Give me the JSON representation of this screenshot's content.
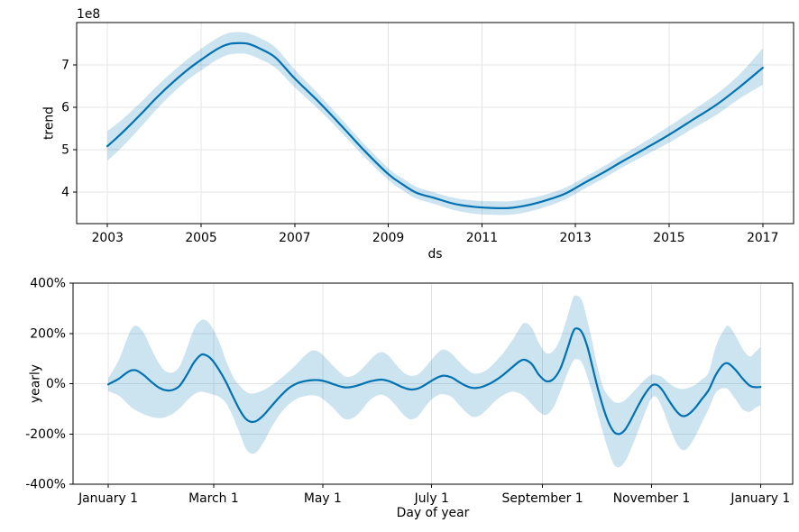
{
  "figure": {
    "background": "#ffffff",
    "line_color": "#0072B2",
    "band_color": "#0072B2",
    "band_opacity": 0.2,
    "grid_color": "#e5e5e5",
    "axis_color": "#000000",
    "text_color": "#000000"
  },
  "chart_data": [
    {
      "type": "line",
      "id": "trend",
      "xlabel": "ds",
      "ylabel": "trend",
      "offset_text": "1e8",
      "grid": true,
      "legend_position": "none",
      "xlim": [
        2002.34,
        2017.66
      ],
      "ylim": [
        3.25,
        8.0
      ],
      "x_ticks": [
        {
          "v": 2003,
          "label": "2003"
        },
        {
          "v": 2005,
          "label": "2005"
        },
        {
          "v": 2007,
          "label": "2007"
        },
        {
          "v": 2009,
          "label": "2009"
        },
        {
          "v": 2011,
          "label": "2011"
        },
        {
          "v": 2013,
          "label": "2013"
        },
        {
          "v": 2015,
          "label": "2015"
        },
        {
          "v": 2017,
          "label": "2017"
        }
      ],
      "y_ticks": [
        {
          "v": 4,
          "label": "4"
        },
        {
          "v": 5,
          "label": "5"
        },
        {
          "v": 6,
          "label": "6"
        },
        {
          "v": 7,
          "label": "7"
        }
      ],
      "x": [
        2003.0,
        2003.25,
        2003.5,
        2003.75,
        2004.0,
        2004.25,
        2004.5,
        2004.75,
        2005.0,
        2005.25,
        2005.5,
        2005.7,
        2006.0,
        2006.3,
        2006.6,
        2007.0,
        2007.5,
        2008.0,
        2008.5,
        2009.0,
        2009.3,
        2009.6,
        2010.0,
        2010.4,
        2010.8,
        2011.2,
        2011.6,
        2012.0,
        2012.4,
        2012.8,
        2013.2,
        2013.6,
        2014.0,
        2014.5,
        2015.0,
        2015.5,
        2016.0,
        2016.5,
        2017.0
      ],
      "y": [
        5.08,
        5.33,
        5.6,
        5.88,
        6.17,
        6.44,
        6.69,
        6.92,
        7.12,
        7.31,
        7.46,
        7.51,
        7.5,
        7.36,
        7.16,
        6.68,
        6.14,
        5.56,
        4.96,
        4.42,
        4.18,
        3.98,
        3.85,
        3.72,
        3.65,
        3.62,
        3.62,
        3.69,
        3.81,
        3.97,
        4.22,
        4.46,
        4.72,
        5.03,
        5.35,
        5.7,
        6.05,
        6.47,
        6.93
      ],
      "upper": [
        5.44,
        5.65,
        5.9,
        6.16,
        6.44,
        6.7,
        6.94,
        7.17,
        7.38,
        7.57,
        7.72,
        7.77,
        7.75,
        7.61,
        7.4,
        6.89,
        6.32,
        5.72,
        5.11,
        4.56,
        4.32,
        4.12,
        3.98,
        3.86,
        3.8,
        3.78,
        3.78,
        3.84,
        3.95,
        4.11,
        4.35,
        4.6,
        4.87,
        5.2,
        5.55,
        5.92,
        6.3,
        6.77,
        7.39
      ],
      "lower": [
        4.74,
        4.99,
        5.28,
        5.58,
        5.89,
        6.18,
        6.44,
        6.68,
        6.87,
        7.06,
        7.21,
        7.26,
        7.25,
        7.11,
        6.92,
        6.47,
        5.96,
        5.4,
        4.81,
        4.28,
        4.04,
        3.84,
        3.71,
        3.57,
        3.49,
        3.46,
        3.46,
        3.53,
        3.66,
        3.83,
        4.08,
        4.32,
        4.58,
        4.87,
        5.16,
        5.49,
        5.81,
        6.2,
        6.53
      ]
    },
    {
      "type": "line",
      "id": "yearly",
      "xlabel": "Day of year",
      "ylabel": "yearly",
      "offset_text": "",
      "grid": true,
      "legend_position": "none",
      "xlim": [
        -19.7,
        383.0
      ],
      "ylim": [
        -400,
        400
      ],
      "x_ticks": [
        {
          "v": 0,
          "label": "January 1"
        },
        {
          "v": 59,
          "label": "March 1"
        },
        {
          "v": 120,
          "label": "May 1"
        },
        {
          "v": 181,
          "label": "July 1"
        },
        {
          "v": 243,
          "label": "September 1"
        },
        {
          "v": 304,
          "label": "November 1"
        },
        {
          "v": 365,
          "label": "January 1"
        }
      ],
      "y_ticks": [
        {
          "v": -400,
          "label": "-400%"
        },
        {
          "v": -200,
          "label": "-200%"
        },
        {
          "v": 0,
          "label": "0%"
        },
        {
          "v": 200,
          "label": "200%"
        },
        {
          "v": 400,
          "label": "400%"
        }
      ],
      "x": [
        0,
        6,
        10,
        13,
        16,
        20,
        24,
        28,
        32,
        36,
        40,
        44,
        48,
        52,
        55,
        58,
        62,
        66,
        70,
        74,
        77,
        80,
        83,
        87,
        91,
        96,
        101,
        106,
        110,
        114,
        118,
        122,
        126,
        130,
        133,
        137,
        141,
        145,
        149,
        153,
        157,
        161,
        165,
        169,
        173,
        177,
        181,
        185,
        188,
        192,
        196,
        200,
        204,
        208,
        212,
        216,
        221,
        226,
        230,
        233,
        237,
        241,
        245,
        249,
        253,
        257,
        260,
        262,
        265,
        268,
        271,
        274,
        277,
        280,
        283,
        286,
        289,
        292,
        296,
        300,
        304,
        307,
        310,
        314,
        318,
        321,
        324,
        328,
        332,
        336,
        340,
        344,
        347,
        351,
        355,
        359,
        362,
        365
      ],
      "y": [
        -3,
        20,
        42,
        53,
        52,
        33,
        8,
        -14,
        -26,
        -25,
        -8,
        35,
        85,
        115,
        112,
        95,
        55,
        5,
        -55,
        -110,
        -140,
        -152,
        -148,
        -125,
        -92,
        -52,
        -18,
        2,
        10,
        14,
        14,
        8,
        -2,
        -11,
        -15,
        -12,
        -4,
        6,
        13,
        16,
        10,
        -2,
        -15,
        -23,
        -20,
        -6,
        12,
        27,
        32,
        25,
        8,
        -8,
        -17,
        -15,
        -5,
        10,
        35,
        65,
        88,
        95,
        78,
        35,
        10,
        18,
        60,
        140,
        205,
        220,
        205,
        150,
        65,
        -20,
        -95,
        -155,
        -192,
        -200,
        -185,
        -150,
        -95,
        -45,
        -8,
        -5,
        -25,
        -70,
        -110,
        -128,
        -125,
        -100,
        -63,
        -25,
        35,
        75,
        80,
        55,
        20,
        -8,
        -14,
        -13
      ],
      "upper": [
        22,
        95,
        170,
        218,
        230,
        200,
        140,
        85,
        50,
        45,
        70,
        140,
        218,
        253,
        250,
        225,
        168,
        90,
        25,
        -12,
        -32,
        -40,
        -36,
        -25,
        -8,
        18,
        48,
        82,
        112,
        132,
        126,
        100,
        70,
        42,
        28,
        32,
        52,
        82,
        112,
        126,
        110,
        76,
        46,
        32,
        36,
        62,
        96,
        126,
        136,
        120,
        90,
        62,
        42,
        42,
        56,
        82,
        122,
        172,
        218,
        242,
        222,
        162,
        122,
        130,
        180,
        268,
        340,
        350,
        332,
        255,
        160,
        60,
        -15,
        -50,
        -72,
        -76,
        -66,
        -46,
        -16,
        14,
        36,
        33,
        26,
        0,
        -16,
        -21,
        -18,
        -6,
        16,
        46,
        148,
        208,
        230,
        192,
        138,
        108,
        126,
        146
      ],
      "lower": [
        -30,
        -48,
        -75,
        -95,
        -108,
        -122,
        -132,
        -137,
        -133,
        -120,
        -98,
        -68,
        -42,
        -32,
        -36,
        -42,
        -52,
        -78,
        -135,
        -205,
        -258,
        -278,
        -272,
        -232,
        -178,
        -122,
        -82,
        -58,
        -50,
        -46,
        -52,
        -72,
        -98,
        -128,
        -142,
        -136,
        -112,
        -76,
        -52,
        -44,
        -58,
        -88,
        -122,
        -142,
        -132,
        -96,
        -62,
        -44,
        -42,
        -52,
        -82,
        -112,
        -132,
        -126,
        -102,
        -72,
        -46,
        -32,
        -38,
        -52,
        -82,
        -112,
        -124,
        -96,
        -30,
        42,
        88,
        98,
        85,
        30,
        -42,
        -122,
        -198,
        -268,
        -322,
        -332,
        -312,
        -268,
        -198,
        -122,
        -58,
        -56,
        -96,
        -172,
        -238,
        -263,
        -258,
        -216,
        -158,
        -100,
        -36,
        -18,
        -24,
        -62,
        -102,
        -112,
        -96,
        -86
      ]
    }
  ]
}
